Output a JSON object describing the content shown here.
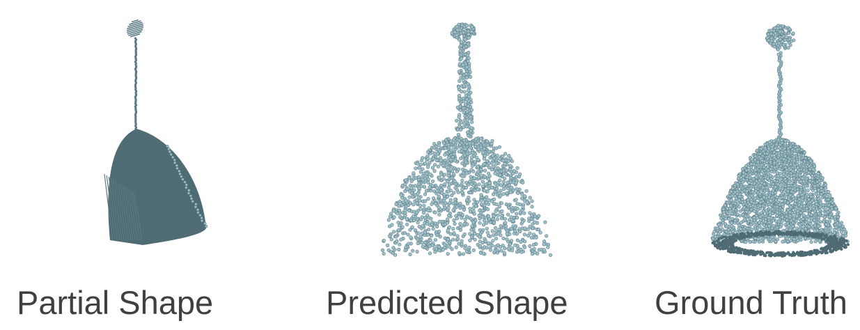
{
  "colors": {
    "point_fill": "#9fc0c8",
    "point_dark": "#5a7a84",
    "dense_surface": "#4f6b73",
    "caption_text": "#404040"
  },
  "panels": [
    {
      "id": "partial",
      "caption": "Partial Shape"
    },
    {
      "id": "predicted",
      "caption": "Predicted Shape"
    },
    {
      "id": "ground_truth",
      "caption": "Ground Truth"
    }
  ]
}
